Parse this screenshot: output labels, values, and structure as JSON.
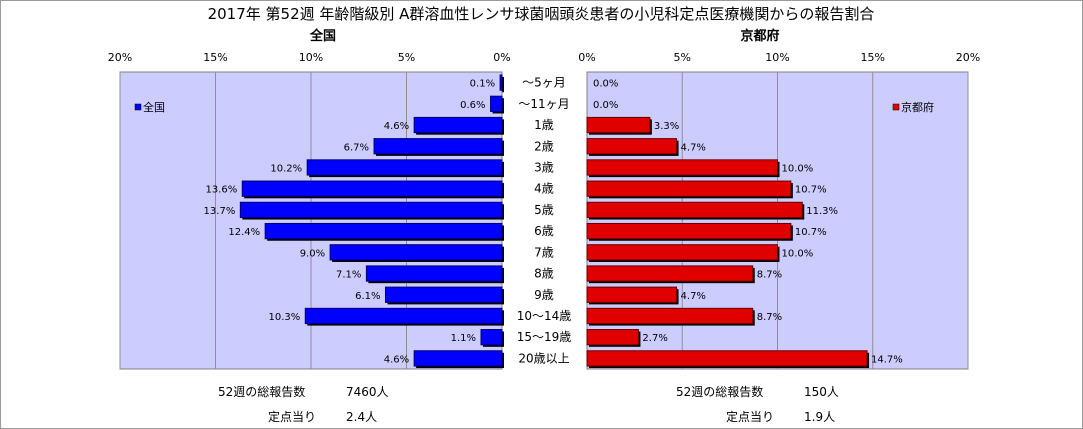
{
  "chart_data": {
    "type": "bar",
    "orientation": "horizontal",
    "layout": "back-to-back",
    "title": "2017年 第52週 年齢階級別 A群溶血性レンサ球菌咽頭炎患者の小児科定点医療機関からの報告割合",
    "categories": [
      "～5ヶ月",
      "～11ヶ月",
      "1歳",
      "2歳",
      "3歳",
      "4歳",
      "5歳",
      "6歳",
      "7歳",
      "8歳",
      "9歳",
      "10～14歳",
      "15～19歳",
      "20歳以上"
    ],
    "panels": [
      {
        "title": "全国",
        "side": "left",
        "xlim": [
          0,
          20
        ],
        "ticks": [
          "20%",
          "15%",
          "10%",
          "5%",
          "0%"
        ],
        "tick_values": [
          20,
          15,
          10,
          5,
          0
        ],
        "series": [
          {
            "name": "全国",
            "color": "#0000ff",
            "values": [
              0.1,
              0.6,
              4.6,
              6.7,
              10.2,
              13.6,
              13.7,
              12.4,
              9.0,
              7.1,
              6.1,
              10.3,
              1.1,
              4.6
            ],
            "labels": [
              "0.1%",
              "0.6%",
              "4.6%",
              "6.7%",
              "10.2%",
              "13.6%",
              "13.7%",
              "12.4%",
              "9.0%",
              "7.1%",
              "6.1%",
              "10.3%",
              "1.1%",
              "4.6%"
            ]
          }
        ],
        "legend_position": "top-left"
      },
      {
        "title": "京都府",
        "side": "right",
        "xlim": [
          0,
          20
        ],
        "ticks": [
          "0%",
          "5%",
          "10%",
          "15%",
          "20%"
        ],
        "tick_values": [
          0,
          5,
          10,
          15,
          20
        ],
        "series": [
          {
            "name": "京都府",
            "color": "#e00000",
            "values": [
              0.0,
              0.0,
              3.3,
              4.7,
              10.0,
              10.7,
              11.3,
              10.7,
              10.0,
              8.7,
              4.7,
              8.7,
              2.7,
              14.7
            ],
            "labels": [
              "0.0%",
              "0.0%",
              "3.3%",
              "4.7%",
              "10.0%",
              "10.7%",
              "11.3%",
              "10.7%",
              "10.0%",
              "8.7%",
              "4.7%",
              "8.7%",
              "2.7%",
              "14.7%"
            ]
          }
        ],
        "legend_position": "top-right"
      }
    ],
    "grid": true,
    "plot_background": "#ccccff"
  },
  "footer": {
    "left": {
      "reports_label": "52週の総報告数",
      "reports_value": "7460人",
      "per_site_label": "定点当り",
      "per_site_value": "2.4人"
    },
    "right": {
      "reports_label": "52週の総報告数",
      "reports_value": "150人",
      "per_site_label": "定点当り",
      "per_site_value": "1.9人"
    }
  }
}
